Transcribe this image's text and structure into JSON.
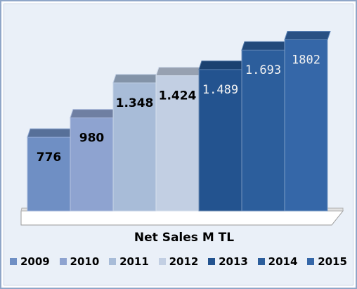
{
  "chart_data": {
    "type": "bar",
    "title": "Net Sales M TL",
    "xlabel": "",
    "ylabel": "",
    "categories": [
      "2009",
      "2010",
      "2011",
      "2012",
      "2013",
      "2014",
      "2015"
    ],
    "values": [
      776,
      980,
      1348,
      1424,
      1489,
      1693,
      1802
    ],
    "data_labels": [
      "776",
      "980",
      "1.348",
      "1.424",
      "1.489",
      "1.693",
      "1802"
    ],
    "colors": [
      "#6f8fc4",
      "#8ea3d0",
      "#a8bcd8",
      "#c2cfe3",
      "#23538f",
      "#2c5e9c",
      "#3567a8"
    ],
    "label_colors": [
      "#000000",
      "#000000",
      "#000000",
      "#000000",
      "#f2f2f2",
      "#f2f2f2",
      "#f2f2f2"
    ],
    "ylim": [
      0,
      1850
    ],
    "grid": false,
    "legend_position": "bottom"
  }
}
